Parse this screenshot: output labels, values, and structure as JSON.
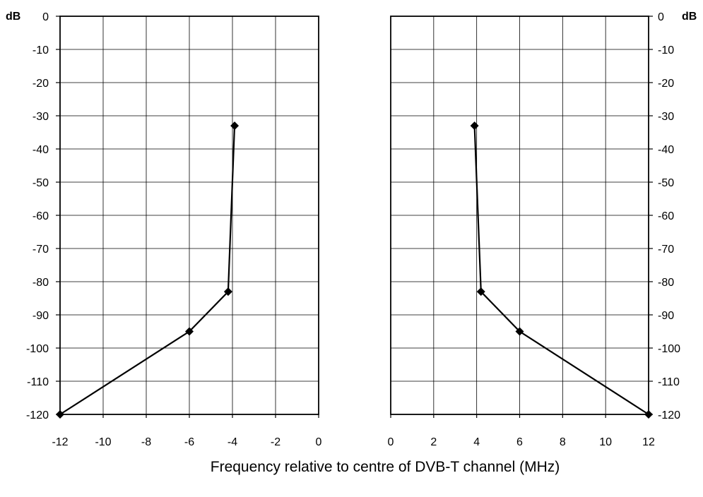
{
  "chart_data": [
    {
      "type": "line",
      "title": "",
      "xlabel": "",
      "ylabel": "dB",
      "xlim": [
        -12,
        0
      ],
      "ylim": [
        -120,
        0
      ],
      "grid": true,
      "x_ticks": [
        "-12",
        "-10",
        "-8",
        "-6",
        "-4",
        "-2",
        "0"
      ],
      "y_ticks": [
        "0",
        "-10",
        "-20",
        "-30",
        "-40",
        "-50",
        "-60",
        "-70",
        "-80",
        "-90",
        "-100",
        "-110",
        "-120"
      ],
      "series": [
        {
          "points": [
            [
              -12,
              -120
            ],
            [
              -6,
              -95
            ],
            [
              -4.2,
              -83
            ],
            [
              -3.9,
              -33
            ]
          ]
        }
      ]
    },
    {
      "type": "line",
      "title": "",
      "xlabel": "",
      "ylabel": "dB",
      "xlim": [
        0,
        12
      ],
      "ylim": [
        -120,
        0
      ],
      "grid": true,
      "x_ticks": [
        "0",
        "2",
        "4",
        "6",
        "8",
        "10",
        "12"
      ],
      "y_ticks": [
        "0",
        "-10",
        "-20",
        "-30",
        "-40",
        "-50",
        "-60",
        "-70",
        "-80",
        "-90",
        "-100",
        "-110",
        "-120"
      ],
      "series": [
        {
          "points": [
            [
              3.9,
              -33
            ],
            [
              4.2,
              -83
            ],
            [
              6,
              -95
            ],
            [
              12,
              -120
            ]
          ]
        }
      ]
    }
  ],
  "shared_xlabel": "Frequency relative to centre of DVB-T channel (MHz)",
  "colors": {
    "line": "#000000",
    "grid": "#000000",
    "marker": "#000000"
  }
}
